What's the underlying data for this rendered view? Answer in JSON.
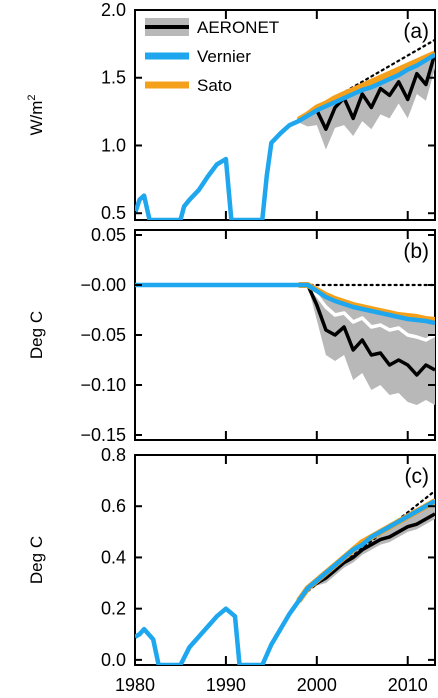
{
  "chart_data": [
    {
      "type": "line",
      "panel_label": "(a)",
      "ylabel": "W/m",
      "ylabel_superscript": "2",
      "ylim": [
        0.45,
        2.0
      ],
      "yticks": [
        0.5,
        1.0,
        1.5,
        2.0
      ],
      "ytick_labels": [
        "0.5",
        "1.0",
        "1.5",
        "2.0"
      ],
      "xlim": [
        1980,
        2013
      ],
      "xticks": [
        1980,
        1990,
        2000,
        2010
      ],
      "legend": {
        "position": "top-left",
        "entries": [
          {
            "name": "AERONET",
            "color": "#000000",
            "band_color": "#b8b8b8"
          },
          {
            "name": "Vernier",
            "color": "#1ea7ee"
          },
          {
            "name": "Sato",
            "color": "#f5a01a"
          }
        ]
      },
      "series": [
        {
          "name": "Vernier",
          "color": "#1ea7ee",
          "x": [
            1980,
            1980.5,
            1981,
            1981.6,
            1982,
            1985,
            1985.4,
            1986,
            1987,
            1988,
            1989,
            1990,
            1990.6,
            1991,
            1994,
            1994.5,
            1995,
            1996,
            1997,
            1998,
            1999,
            2000,
            2001,
            2002,
            2003,
            2004,
            2005,
            2006,
            2007,
            2008,
            2009,
            2010,
            2011,
            2012,
            2013
          ],
          "y": [
            0.5,
            0.6,
            0.63,
            0.45,
            0.45,
            0.45,
            0.55,
            0.6,
            0.67,
            0.77,
            0.86,
            0.9,
            0.45,
            0.45,
            0.45,
            0.78,
            1.02,
            1.09,
            1.15,
            1.18,
            1.22,
            1.26,
            1.29,
            1.32,
            1.35,
            1.38,
            1.41,
            1.43,
            1.46,
            1.49,
            1.52,
            1.56,
            1.59,
            1.63,
            1.67
          ]
        },
        {
          "name": "Sato",
          "color": "#f5a01a",
          "x": [
            1998,
            1999,
            2000,
            2001,
            2002,
            2003,
            2004,
            2005,
            2006,
            2007,
            2008,
            2009,
            2010,
            2011,
            2012,
            2013
          ],
          "y": [
            1.19,
            1.23,
            1.28,
            1.31,
            1.35,
            1.38,
            1.41,
            1.44,
            1.47,
            1.5,
            1.53,
            1.56,
            1.59,
            1.62,
            1.65,
            1.68
          ]
        },
        {
          "name": "AERONET",
          "color": "#000000",
          "x": [
            1998,
            1999,
            2000,
            2001,
            2002,
            2003,
            2004,
            2005,
            2006,
            2007,
            2008,
            2009,
            2010,
            2011,
            2012,
            2013
          ],
          "y": [
            1.18,
            1.22,
            1.26,
            1.12,
            1.28,
            1.35,
            1.2,
            1.38,
            1.28,
            1.42,
            1.37,
            1.47,
            1.34,
            1.53,
            1.45,
            1.68
          ]
        },
        {
          "name": "AERONET-range",
          "color": "#b8b8b8",
          "style": "band",
          "x": [
            1998,
            1999,
            2000,
            2001,
            2002,
            2003,
            2004,
            2005,
            2006,
            2007,
            2008,
            2009,
            2010,
            2011,
            2012,
            2013
          ],
          "lower": [
            1.17,
            1.14,
            1.15,
            0.97,
            1.13,
            1.15,
            1.07,
            1.18,
            1.12,
            1.23,
            1.2,
            1.31,
            1.2,
            1.38,
            1.33,
            1.57
          ],
          "upper": [
            1.19,
            1.25,
            1.3,
            1.3,
            1.35,
            1.39,
            1.41,
            1.44,
            1.46,
            1.49,
            1.52,
            1.55,
            1.58,
            1.61,
            1.64,
            1.68
          ]
        },
        {
          "name": "dotted",
          "color": "#000000",
          "style": "dotted",
          "x": [
            1998,
            2013
          ],
          "y": [
            1.2,
            1.78
          ]
        }
      ]
    },
    {
      "type": "line",
      "panel_label": "(b)",
      "ylabel": "Deg C",
      "ylim": [
        -0.155,
        0.055
      ],
      "yticks": [
        0.05,
        0.0,
        -0.05,
        -0.1,
        -0.15
      ],
      "ytick_labels": [
        "0.05",
        "−0.00",
        "−0.05",
        "−0.10",
        "−0.15"
      ],
      "xlim": [
        1980,
        2013
      ],
      "xticks": [
        1980,
        1990,
        2000,
        2010
      ],
      "series": [
        {
          "name": "Vernier",
          "color": "#1ea7ee",
          "x": [
            1980,
            1998,
            1999,
            2000,
            2001,
            2002,
            2003,
            2004,
            2005,
            2006,
            2007,
            2008,
            2009,
            2010,
            2011,
            2012,
            2013
          ],
          "y": [
            0,
            0,
            0,
            -0.006,
            -0.012,
            -0.016,
            -0.019,
            -0.022,
            -0.024,
            -0.026,
            -0.028,
            -0.03,
            -0.032,
            -0.034,
            -0.035,
            -0.036,
            -0.038
          ]
        },
        {
          "name": "Sato",
          "color": "#f5a01a",
          "x": [
            1998,
            1999,
            2000,
            2001,
            2002,
            2003,
            2004,
            2005,
            2006,
            2007,
            2008,
            2009,
            2010,
            2011,
            2012,
            2013
          ],
          "y": [
            0,
            0,
            -0.005,
            -0.01,
            -0.014,
            -0.017,
            -0.02,
            -0.022,
            -0.024,
            -0.026,
            -0.028,
            -0.03,
            -0.031,
            -0.032,
            -0.034,
            -0.035
          ]
        },
        {
          "name": "AERONET-mean",
          "color": "#ffffff",
          "x": [
            1998,
            1999,
            2000,
            2001,
            2002,
            2003,
            2004,
            2005,
            2006,
            2007,
            2008,
            2009,
            2010,
            2011,
            2012,
            2013
          ],
          "y": [
            0,
            0,
            -0.01,
            -0.022,
            -0.03,
            -0.028,
            -0.037,
            -0.033,
            -0.042,
            -0.04,
            -0.045,
            -0.043,
            -0.05,
            -0.052,
            -0.055,
            -0.05
          ]
        },
        {
          "name": "AERONET",
          "color": "#000000",
          "x": [
            1998,
            1999,
            2000,
            2001,
            2002,
            2003,
            2004,
            2005,
            2006,
            2007,
            2008,
            2009,
            2010,
            2011,
            2012,
            2013
          ],
          "y": [
            0,
            0,
            -0.02,
            -0.045,
            -0.05,
            -0.042,
            -0.065,
            -0.055,
            -0.07,
            -0.068,
            -0.08,
            -0.075,
            -0.08,
            -0.09,
            -0.08,
            -0.085
          ]
        },
        {
          "name": "AERONET-range",
          "color": "#b8b8b8",
          "style": "band",
          "x": [
            1998,
            1999,
            2000,
            2001,
            2002,
            2003,
            2004,
            2005,
            2006,
            2007,
            2008,
            2009,
            2010,
            2011,
            2012,
            2013
          ],
          "lower": [
            0,
            0,
            -0.035,
            -0.07,
            -0.076,
            -0.07,
            -0.095,
            -0.088,
            -0.105,
            -0.1,
            -0.11,
            -0.108,
            -0.117,
            -0.12,
            -0.115,
            -0.12
          ],
          "upper": [
            0,
            0,
            -0.004,
            -0.01,
            -0.014,
            -0.016,
            -0.019,
            -0.021,
            -0.023,
            -0.025,
            -0.027,
            -0.029,
            -0.03,
            -0.032,
            -0.033,
            -0.034
          ]
        },
        {
          "name": "dotted",
          "color": "#000000",
          "style": "dotted",
          "x": [
            1998,
            2013
          ],
          "y": [
            0,
            0
          ]
        }
      ]
    },
    {
      "type": "line",
      "panel_label": "(c)",
      "ylabel": "Deg C",
      "ylim": [
        -0.02,
        0.8
      ],
      "yticks": [
        0.0,
        0.2,
        0.4,
        0.6,
        0.8
      ],
      "ytick_labels": [
        "0.0",
        "0.2",
        "0.4",
        "0.6",
        "0.8"
      ],
      "xlim": [
        1980,
        2013
      ],
      "xticks": [
        1980,
        1990,
        2000,
        2010
      ],
      "xtick_labels": [
        "1980",
        "1990",
        "2000",
        "2010"
      ],
      "series": [
        {
          "name": "Vernier",
          "color": "#1ea7ee",
          "x": [
            1980,
            1980.5,
            1981,
            1982,
            1982.6,
            1985,
            1986,
            1987,
            1988,
            1989,
            1990,
            1991,
            1991.5,
            1994,
            1994.5,
            1995,
            1996,
            1997,
            1998,
            1999,
            2000,
            2001,
            2002,
            2003,
            2004,
            2005,
            2006,
            2007,
            2008,
            2009,
            2010,
            2011,
            2012,
            2013
          ],
          "y": [
            0.09,
            0.1,
            0.12,
            0.08,
            -0.02,
            -0.02,
            0.05,
            0.09,
            0.13,
            0.17,
            0.2,
            0.17,
            -0.02,
            -0.02,
            0.02,
            0.06,
            0.12,
            0.18,
            0.23,
            0.28,
            0.31,
            0.34,
            0.37,
            0.4,
            0.43,
            0.45,
            0.48,
            0.5,
            0.52,
            0.54,
            0.56,
            0.58,
            0.6,
            0.62
          ]
        },
        {
          "name": "Sato",
          "color": "#f5a01a",
          "x": [
            1998,
            1999,
            2000,
            2001,
            2002,
            2003,
            2004,
            2005,
            2006,
            2007,
            2008,
            2009,
            2010,
            2011,
            2012,
            2013
          ],
          "y": [
            0.23,
            0.28,
            0.31,
            0.34,
            0.37,
            0.4,
            0.43,
            0.46,
            0.48,
            0.5,
            0.52,
            0.54,
            0.56,
            0.58,
            0.6,
            0.62
          ]
        },
        {
          "name": "AERONET",
          "color": "#000000",
          "x": [
            1998,
            1999,
            2000,
            2001,
            2002,
            2003,
            2004,
            2005,
            2006,
            2007,
            2008,
            2009,
            2010,
            2011,
            2012,
            2013
          ],
          "y": [
            0.23,
            0.28,
            0.3,
            0.32,
            0.35,
            0.38,
            0.4,
            0.43,
            0.45,
            0.47,
            0.48,
            0.5,
            0.52,
            0.53,
            0.55,
            0.57
          ]
        },
        {
          "name": "AERONET-range",
          "color": "#b8b8b8",
          "style": "band",
          "x": [
            1998,
            1999,
            2000,
            2001,
            2002,
            2003,
            2004,
            2005,
            2006,
            2007,
            2008,
            2009,
            2010,
            2011,
            2012,
            2013
          ],
          "lower": [
            0.23,
            0.27,
            0.29,
            0.3,
            0.33,
            0.36,
            0.38,
            0.41,
            0.43,
            0.45,
            0.46,
            0.48,
            0.5,
            0.51,
            0.53,
            0.55
          ],
          "upper": [
            0.23,
            0.29,
            0.32,
            0.35,
            0.38,
            0.41,
            0.44,
            0.47,
            0.49,
            0.51,
            0.53,
            0.55,
            0.57,
            0.59,
            0.61,
            0.63
          ]
        },
        {
          "name": "dotted",
          "color": "#000000",
          "style": "dotted",
          "x": [
            1998,
            2013
          ],
          "y": [
            0.24,
            0.66
          ]
        }
      ]
    }
  ]
}
